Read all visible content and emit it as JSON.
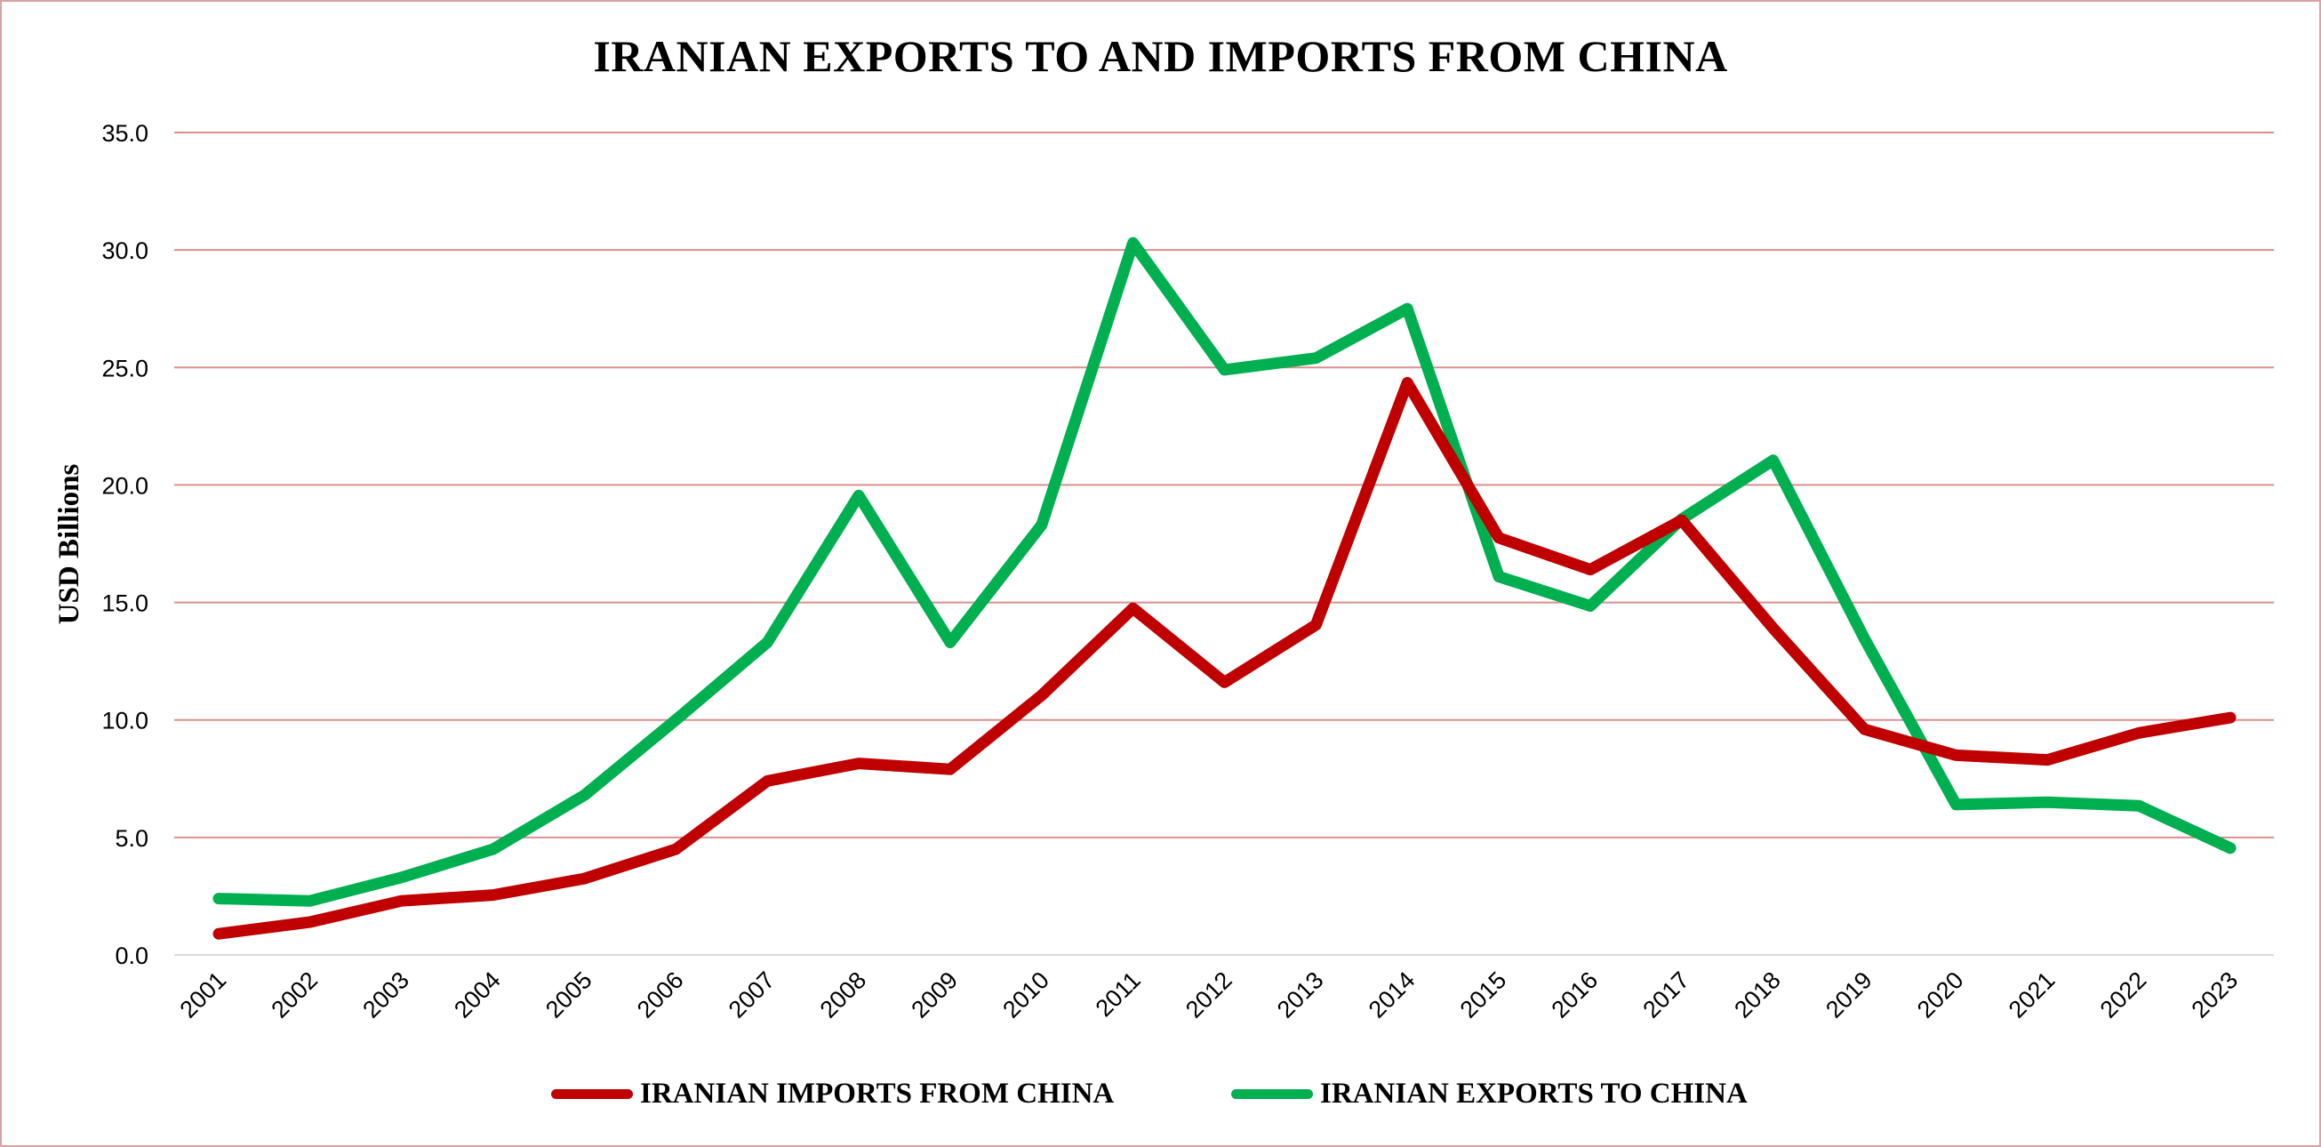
{
  "chart_data": {
    "type": "line",
    "title": "IRANIAN EXPORTS TO AND IMPORTS FROM CHINA",
    "ylabel": "USD Billions",
    "xlabel": "",
    "ylim": [
      0,
      35
    ],
    "yticks": [
      "0.0",
      "5.0",
      "10.0",
      "15.0",
      "20.0",
      "25.0",
      "30.0",
      "35.0"
    ],
    "grid": true,
    "legend_position": "bottom",
    "x": [
      "2001",
      "2002",
      "2003",
      "2004",
      "2005",
      "2006",
      "2007",
      "2008",
      "2009",
      "2010",
      "2011",
      "2012",
      "2013",
      "2014",
      "2015",
      "2016",
      "2017",
      "2018",
      "2019",
      "2020",
      "2021",
      "2022",
      "2023"
    ],
    "series": [
      {
        "name": "IRANIAN IMPORTS FROM CHINA",
        "color": "#c00000",
        "values": [
          0.9,
          1.4,
          2.3,
          2.55,
          3.25,
          4.5,
          7.4,
          8.15,
          7.9,
          11.05,
          14.75,
          11.6,
          14.05,
          24.35,
          17.75,
          16.4,
          18.5,
          13.9,
          9.6,
          8.5,
          8.3,
          9.45,
          10.1
        ]
      },
      {
        "name": "IRANIAN EXPORTS TO CHINA",
        "color": "#00b050",
        "values": [
          2.4,
          2.3,
          3.3,
          4.5,
          6.8,
          10.0,
          13.3,
          19.55,
          13.3,
          18.3,
          30.3,
          24.9,
          25.4,
          27.5,
          16.1,
          14.85,
          18.55,
          21.05,
          13.45,
          6.4,
          6.5,
          6.35,
          4.55
        ]
      }
    ]
  }
}
